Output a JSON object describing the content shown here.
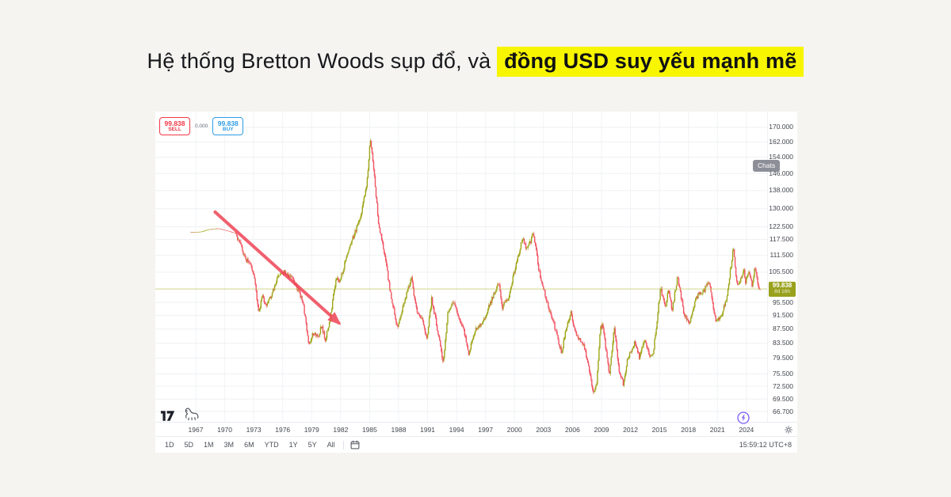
{
  "title": {
    "prefix": "Hệ thống Bretton Woods sụp đổ, và ",
    "highlight": "đồng USD suy yếu mạnh mẽ",
    "highlight_bg": "#f7f500"
  },
  "chart_panel": {
    "order_panel": {
      "sell_value": "99.838",
      "sell_label": "SELL",
      "spread": "0.000",
      "buy_value": "99.838",
      "buy_label": "BUY"
    },
    "chats_badge": "Chats",
    "price_badge": {
      "price": "99.838",
      "countdown": "8d 16h"
    },
    "toolbar": {
      "ranges": [
        "1D",
        "5D",
        "1M",
        "3M",
        "6M",
        "YTD",
        "1Y",
        "5Y",
        "All"
      ],
      "clock": "15:59:12 UTC+8"
    },
    "colors": {
      "up": "#9da515",
      "down": "#f15361",
      "sell": "#f23645",
      "buy": "#2f9de4",
      "arrow": "#ef4455",
      "badge_bg": "#99a11d",
      "price_line": "#b9bd4e",
      "grid_h": "#eef0f4",
      "grid_v": "#f2f3f6"
    }
  },
  "chart_data": {
    "type": "candlestick",
    "interval": "monthly",
    "y_scale": "log",
    "grid": true,
    "x_range": [
      1966.5,
      2025.45
    ],
    "x_tick_values": [
      1967,
      1970,
      1973,
      1976,
      1979,
      1982,
      1985,
      1988,
      1991,
      1994,
      1997,
      2000,
      2003,
      2006,
      2009,
      2012,
      2015,
      2018,
      2021,
      2024
    ],
    "x_tick_labels": [
      "1967",
      "1970",
      "1973",
      "1976",
      "1979",
      "1982",
      "1985",
      "1988",
      "1991",
      "1994",
      "1997",
      "2000",
      "2003",
      "2006",
      "2009",
      "2012",
      "2015",
      "2018",
      "2021",
      "2024"
    ],
    "y_tick_values": [
      170,
      162,
      154,
      146,
      138,
      130,
      122.5,
      117.5,
      111.5,
      105.5,
      95.5,
      91.5,
      87.5,
      83.5,
      79.5,
      75.5,
      72.5,
      69.5,
      66.7
    ],
    "y_tick_labels": [
      "170.000",
      "162.000",
      "154.000",
      "146.000",
      "138.000",
      "130.000",
      "122.500",
      "117.500",
      "111.500",
      "105.500",
      "95.500",
      "91.500",
      "87.500",
      "83.500",
      "79.500",
      "75.500",
      "72.500",
      "69.500",
      "66.700"
    ],
    "last_price": 99.838,
    "anchors": [
      [
        1966.5,
        120.3
      ],
      [
        1967.5,
        120.5
      ],
      [
        1968.5,
        121.5
      ],
      [
        1969.5,
        121.8
      ],
      [
        1970.5,
        120.7
      ],
      [
        1971.2,
        120.0
      ],
      [
        1971.7,
        115.5
      ],
      [
        1972.2,
        110.0
      ],
      [
        1972.8,
        108.5
      ],
      [
        1973.2,
        102.0
      ],
      [
        1973.6,
        92.5
      ],
      [
        1974.0,
        97.5
      ],
      [
        1974.4,
        94.0
      ],
      [
        1975.0,
        98.5
      ],
      [
        1975.6,
        104.0
      ],
      [
        1976.3,
        105.8
      ],
      [
        1977.0,
        103.5
      ],
      [
        1977.6,
        100.0
      ],
      [
        1978.2,
        95.5
      ],
      [
        1978.8,
        82.5
      ],
      [
        1979.2,
        86.0
      ],
      [
        1979.8,
        85.5
      ],
      [
        1980.1,
        88.5
      ],
      [
        1980.5,
        84.6
      ],
      [
        1981.0,
        90.5
      ],
      [
        1981.6,
        103.5
      ],
      [
        1982.0,
        102.5
      ],
      [
        1982.6,
        109.5
      ],
      [
        1983.1,
        115.5
      ],
      [
        1983.7,
        121.5
      ],
      [
        1984.2,
        127.5
      ],
      [
        1984.8,
        141.0
      ],
      [
        1985.15,
        164.7
      ],
      [
        1985.5,
        149.0
      ],
      [
        1986.0,
        123.5
      ],
      [
        1986.6,
        112.5
      ],
      [
        1987.2,
        99.5
      ],
      [
        1987.95,
        87.5
      ],
      [
        1988.4,
        93.0
      ],
      [
        1988.8,
        97.0
      ],
      [
        1989.4,
        103.5
      ],
      [
        1989.9,
        93.5
      ],
      [
        1990.5,
        90.5
      ],
      [
        1991.0,
        84.5
      ],
      [
        1991.5,
        96.5
      ],
      [
        1992.0,
        89.0
      ],
      [
        1992.7,
        78.3
      ],
      [
        1993.2,
        93.0
      ],
      [
        1993.8,
        96.0
      ],
      [
        1994.4,
        89.5
      ],
      [
        1994.9,
        86.5
      ],
      [
        1995.3,
        80.3
      ],
      [
        1996.0,
        87.0
      ],
      [
        1996.8,
        89.5
      ],
      [
        1997.6,
        95.5
      ],
      [
        1998.5,
        102.0
      ],
      [
        1998.8,
        94.0
      ],
      [
        1999.5,
        97.5
      ],
      [
        2000.0,
        105.0
      ],
      [
        2000.9,
        118.0
      ],
      [
        2001.4,
        113.5
      ],
      [
        2002.05,
        120.2
      ],
      [
        2002.6,
        106.5
      ],
      [
        2003.1,
        99.5
      ],
      [
        2003.7,
        93.0
      ],
      [
        2004.2,
        88.5
      ],
      [
        2004.95,
        80.9
      ],
      [
        2005.5,
        88.5
      ],
      [
        2005.9,
        92.3
      ],
      [
        2006.5,
        85.5
      ],
      [
        2007.2,
        83.5
      ],
      [
        2007.8,
        77.0
      ],
      [
        2008.25,
        70.8
      ],
      [
        2008.6,
        73.5
      ],
      [
        2008.95,
        87.5
      ],
      [
        2009.2,
        89.0
      ],
      [
        2009.9,
        74.9
      ],
      [
        2010.4,
        88.0
      ],
      [
        2010.9,
        76.5
      ],
      [
        2011.35,
        73.0
      ],
      [
        2011.8,
        79.5
      ],
      [
        2012.5,
        83.5
      ],
      [
        2013.0,
        79.8
      ],
      [
        2013.55,
        84.3
      ],
      [
        2014.0,
        80.5
      ],
      [
        2014.4,
        79.9
      ],
      [
        2015.2,
        100.2
      ],
      [
        2015.7,
        93.5
      ],
      [
        2016.0,
        99.5
      ],
      [
        2016.4,
        93.0
      ],
      [
        2016.95,
        103.8
      ],
      [
        2017.6,
        92.5
      ],
      [
        2018.1,
        88.8
      ],
      [
        2018.9,
        97.3
      ],
      [
        2019.7,
        99.2
      ],
      [
        2020.2,
        102.8
      ],
      [
        2020.7,
        92.5
      ],
      [
        2021.0,
        89.5
      ],
      [
        2021.6,
        92.5
      ],
      [
        2022.0,
        96.2
      ],
      [
        2022.75,
        114.5
      ],
      [
        2023.1,
        101.0
      ],
      [
        2023.55,
        103.5
      ],
      [
        2023.8,
        106.8
      ],
      [
        2024.0,
        102.0
      ],
      [
        2024.35,
        106.0
      ],
      [
        2024.7,
        100.8
      ],
      [
        2024.95,
        108.4
      ],
      [
        2025.15,
        103.5
      ],
      [
        2025.42,
        99.838
      ]
    ],
    "annotation_arrow": {
      "from": [
        1969.0,
        128.6
      ],
      "to": [
        1981.8,
        89.3
      ]
    }
  }
}
